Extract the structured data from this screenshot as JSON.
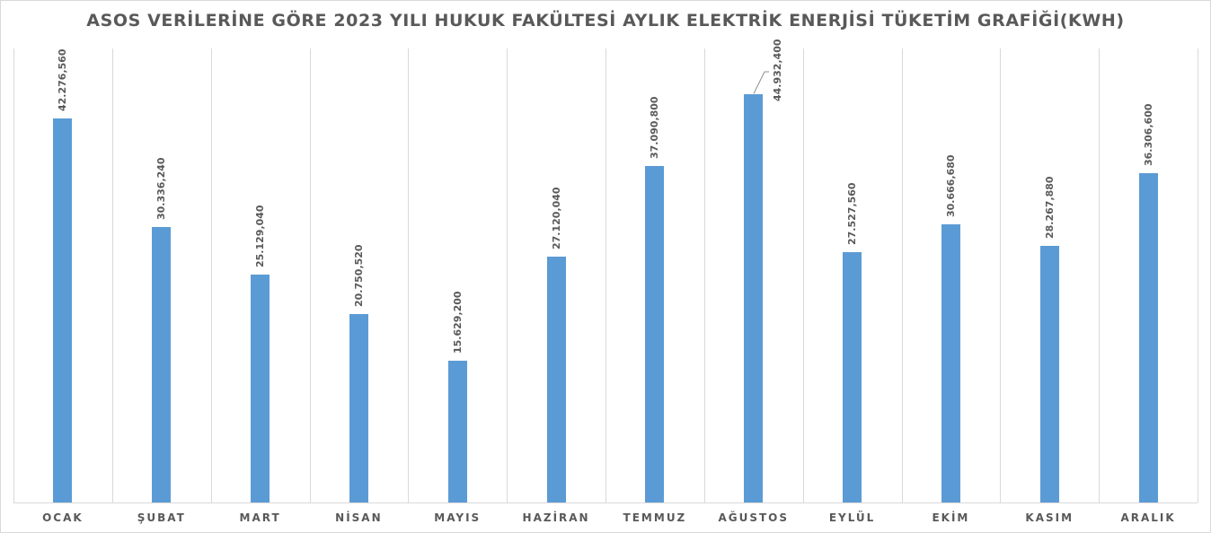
{
  "chart_data": {
    "type": "bar",
    "title": "ASOS VERİLERİNE GÖRE 2023 YILI HUKUK FAKÜLTESİ AYLIK ELEKTRİK ENERJİSİ TÜKETİM GRAFİĞİ(KWH)",
    "xlabel": "",
    "ylabel": "",
    "ylim": [
      0,
      50000000
    ],
    "grid": "vertical category separators",
    "legend": "none",
    "bar_color": "#5b9bd5",
    "categories": [
      "OCAK",
      "ŞUBAT",
      "MART",
      "NİSAN",
      "MAYIS",
      "HAZİRAN",
      "TEMMUZ",
      "AĞUSTOS",
      "EYLÜL",
      "EKİM",
      "KASIM",
      "ARALIK"
    ],
    "values": [
      42276560,
      30336240,
      25129040,
      20750520,
      15629200,
      27120040,
      37090800,
      44932400,
      27527560,
      30666680,
      28267880,
      36306600
    ],
    "value_labels": [
      "42.276,560",
      "30.336,240",
      "25.129,040",
      "20.750,520",
      "15.629,200",
      "27.120,040",
      "37.090,800",
      "44.932,400",
      "27.527,560",
      "30.666,680",
      "28.267,880",
      "36.306,600"
    ]
  }
}
